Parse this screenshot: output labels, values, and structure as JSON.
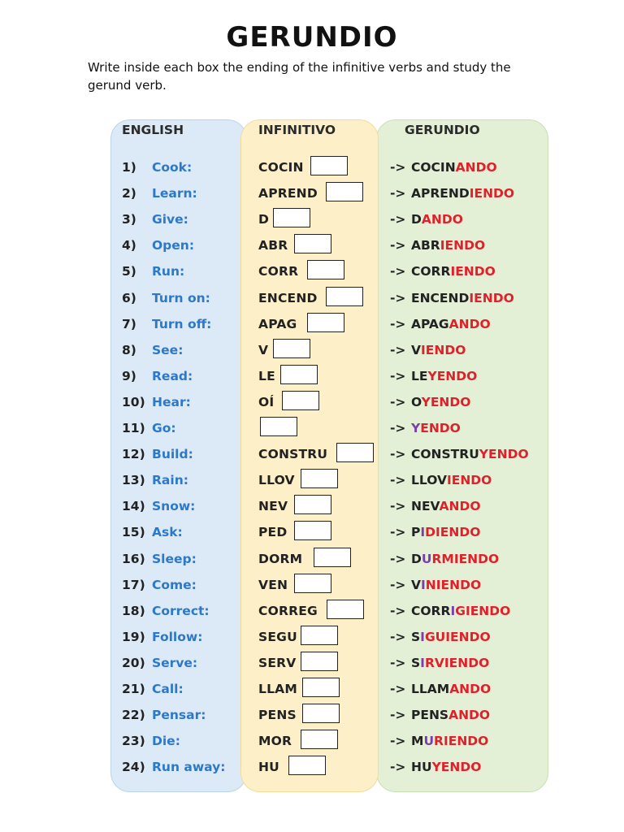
{
  "title": "GERUNDIO",
  "instructions": "Write inside each box the ending of the infinitive verbs and study the gerund verb.",
  "headers": {
    "english": "ENGLISH",
    "infinitivo": "INFINITIVO",
    "gerundio": "GERUNDIO"
  },
  "colors": {
    "english_text": "#2e78c8",
    "ending_red": "#e0202a",
    "stem_change_purple": "#7a3fa8",
    "english_panel": "#dce9f6",
    "infinitivo_panel": "#fdf0c9",
    "gerundio_panel": "#e3f0d6"
  },
  "rows": [
    {
      "num": "1)",
      "english": "Cook:",
      "stem": "COCIN",
      "arrow": "->",
      "g1": "COCIN",
      "g2": "",
      "g3": "ANDO"
    },
    {
      "num": "2)",
      "english": "Learn:",
      "stem": "APREND",
      "arrow": "->",
      "g1": "APREND",
      "g2": "",
      "g3": "IENDO"
    },
    {
      "num": "3)",
      "english": "Give:",
      "stem": "D",
      "arrow": "->",
      "g1": "D",
      "g2": "",
      "g3": "ANDO"
    },
    {
      "num": "4)",
      "english": "Open:",
      "stem": "ABR",
      "arrow": "->",
      "g1": "ABR",
      "g2": "",
      "g3": "IENDO"
    },
    {
      "num": "5)",
      "english": "Run:",
      "stem": "CORR",
      "arrow": "->",
      "g1": "CORR",
      "g2": "",
      "g3": "IENDO"
    },
    {
      "num": "6)",
      "english": "Turn on:",
      "stem": "ENCEND",
      "arrow": "->",
      "g1": "ENCEND",
      "g2": "",
      "g3": "IENDO"
    },
    {
      "num": "7)",
      "english": "Turn off:",
      "stem": "APAG",
      "arrow": "->",
      "g1": "APAG",
      "g2": "",
      "g3": "ANDO"
    },
    {
      "num": "8)",
      "english": "See:",
      "stem": "V",
      "arrow": "->",
      "g1": "V",
      "g2": "",
      "g3": "IENDO"
    },
    {
      "num": "9)",
      "english": "Read:",
      "stem": "LE",
      "arrow": "->",
      "g1": "LE",
      "g2": "",
      "g3": "YENDO"
    },
    {
      "num": "10)",
      "english": "Hear:",
      "stem": "OÍ",
      "arrow": "->",
      "g1": "O",
      "g2": "",
      "g3": "YENDO"
    },
    {
      "num": "11)",
      "english": "Go:",
      "stem": "",
      "arrow": "->",
      "g1": "",
      "g2": "Y",
      "g3": "ENDO"
    },
    {
      "num": "12)",
      "english": "Build:",
      "stem": "CONSTRU",
      "arrow": "->",
      "g1": "CONSTRU",
      "g2": "",
      "g3": "YENDO"
    },
    {
      "num": "13)",
      "english": "Rain:",
      "stem": "LLOV",
      "arrow": "->",
      "g1": "LLOV",
      "g2": "",
      "g3": "IENDO"
    },
    {
      "num": "14)",
      "english": "Snow:",
      "stem": "NEV",
      "arrow": "->",
      "g1": "NEV",
      "g2": "",
      "g3": "ANDO"
    },
    {
      "num": "15)",
      "english": "Ask:",
      "stem": "PED",
      "arrow": "->",
      "g1": "P",
      "g2": "I",
      "g3": "DIENDO"
    },
    {
      "num": "16)",
      "english": "Sleep:",
      "stem": "DORM",
      "arrow": "->",
      "g1": "D",
      "g2": "U",
      "g3": "RMIENDO"
    },
    {
      "num": "17)",
      "english": "Come:",
      "stem": "VEN",
      "arrow": "->",
      "g1": "V",
      "g2": "I",
      "g3": "NIENDO"
    },
    {
      "num": "18)",
      "english": "Correct:",
      "stem": "CORREG",
      "arrow": "->",
      "g1": "CORR",
      "g2": "I",
      "g3": "GIENDO"
    },
    {
      "num": "19)",
      "english": "Follow:",
      "stem": "SEGU",
      "arrow": "->",
      "g1": "S",
      "g2": "I",
      "g3": "GUIENDO"
    },
    {
      "num": "20)",
      "english": "Serve:",
      "stem": "SERV",
      "arrow": "->",
      "g1": "S",
      "g2": "I",
      "g3": "RVIENDO"
    },
    {
      "num": "21)",
      "english": "Call:",
      "stem": "LLAM",
      "arrow": "->",
      "g1": "LLAM",
      "g2": "",
      "g3": "ANDO"
    },
    {
      "num": "22)",
      "english": "Pensar:",
      "stem": "PENS",
      "arrow": "->",
      "g1": "PENS",
      "g2": "",
      "g3": "ANDO"
    },
    {
      "num": "23)",
      "english": "Die:",
      "stem": "MOR",
      "arrow": "->",
      "g1": "M",
      "g2": "U",
      "g3": "RIENDO"
    },
    {
      "num": "24)",
      "english": "Run away:",
      "stem": "HU",
      "arrow": "->",
      "g1": "HU",
      "g2": "",
      "g3": "YENDO"
    }
  ]
}
